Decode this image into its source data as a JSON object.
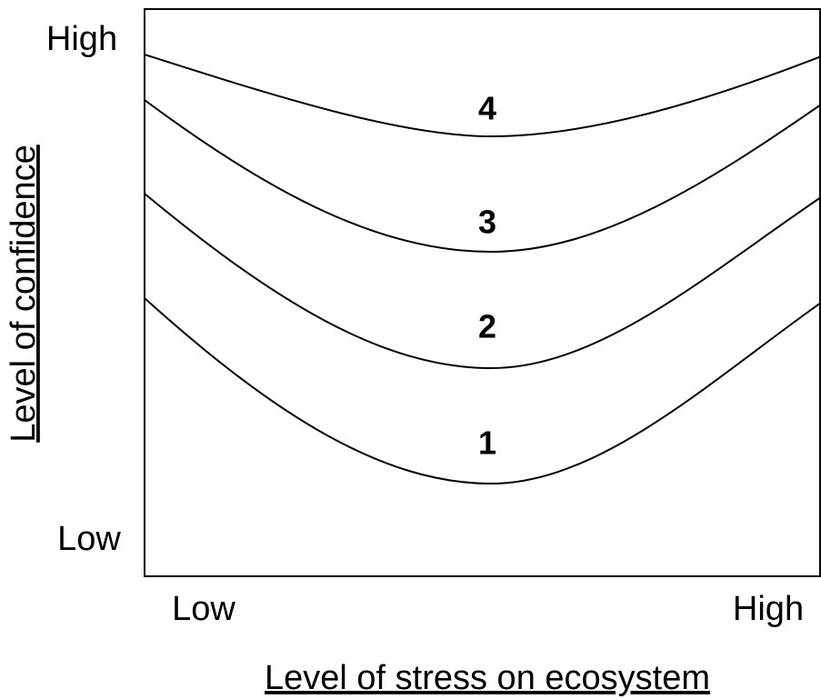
{
  "y_axis": {
    "title": "Level of confidence",
    "labels": [
      "High",
      "Low"
    ]
  },
  "x_axis": {
    "title": "Level of stress on ecosystem",
    "labels": [
      "Low",
      "High"
    ]
  },
  "curves": [
    {
      "label": "1"
    },
    {
      "label": "2"
    },
    {
      "label": "3"
    },
    {
      "label": "4"
    }
  ]
}
